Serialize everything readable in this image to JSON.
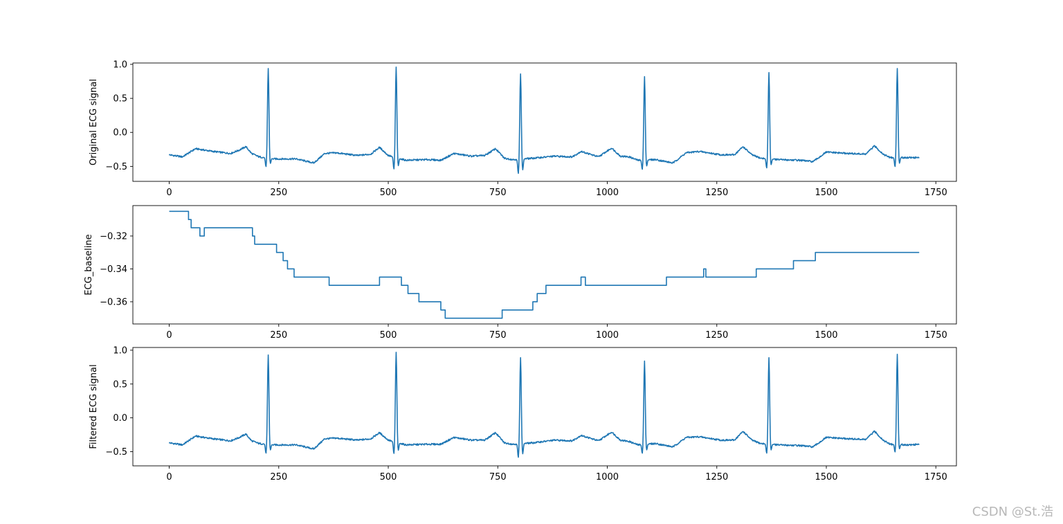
{
  "watermark": "CSDN @St.浩",
  "colors": {
    "line": "#1f77b4",
    "axes": "#000000",
    "background": "#ffffff"
  },
  "chart_data": [
    {
      "type": "line",
      "ylabel": "Original ECG signal",
      "xlim": [
        -83,
        1797
      ],
      "ylim": [
        -0.72,
        1.02
      ],
      "xticks": [
        0,
        250,
        500,
        750,
        1000,
        1250,
        1500,
        1750
      ],
      "yticks": [
        -0.5,
        0.0,
        0.5,
        1.0
      ],
      "ytick_labels": [
        "−0.5",
        "0.0",
        "0.5",
        "1.0"
      ],
      "grid": false,
      "peaks": [
        {
          "x": 226,
          "r": 0.94,
          "q": -0.53
        },
        {
          "x": 518,
          "r": 0.96,
          "q": -0.57
        },
        {
          "x": 802,
          "r": 0.86,
          "q": -0.64
        },
        {
          "x": 1085,
          "r": 0.82,
          "q": -0.57
        },
        {
          "x": 1369,
          "r": 0.88,
          "q": -0.55
        },
        {
          "x": 1662,
          "r": 0.94,
          "q": -0.53
        }
      ],
      "series": [
        {
          "x": [
            0,
            30,
            60,
            100,
            140,
            160,
            175,
            188,
            205,
            240,
            290,
            330,
            355,
            380,
            430,
            460,
            480,
            500,
            540,
            590,
            620,
            650,
            690,
            720,
            745,
            765,
            785,
            830,
            880,
            920,
            940,
            980,
            1010,
            1030,
            1050,
            1070,
            1110,
            1150,
            1180,
            1210,
            1260,
            1290,
            1310,
            1330,
            1350,
            1390,
            1440,
            1470,
            1500,
            1550,
            1590,
            1610,
            1630,
            1645,
            1690,
            1712
          ],
          "y": [
            -0.33,
            -0.36,
            -0.24,
            -0.28,
            -0.31,
            -0.26,
            -0.21,
            -0.31,
            -0.36,
            -0.39,
            -0.39,
            -0.45,
            -0.31,
            -0.3,
            -0.34,
            -0.32,
            -0.22,
            -0.34,
            -0.41,
            -0.4,
            -0.41,
            -0.31,
            -0.35,
            -0.34,
            -0.24,
            -0.38,
            -0.4,
            -0.38,
            -0.35,
            -0.36,
            -0.28,
            -0.36,
            -0.23,
            -0.35,
            -0.36,
            -0.41,
            -0.4,
            -0.45,
            -0.3,
            -0.28,
            -0.33,
            -0.33,
            -0.21,
            -0.33,
            -0.38,
            -0.4,
            -0.41,
            -0.43,
            -0.29,
            -0.31,
            -0.32,
            -0.2,
            -0.32,
            -0.37,
            -0.37,
            -0.37
          ]
        }
      ]
    },
    {
      "type": "line",
      "ylabel": "ECG_baseline",
      "xlim": [
        -83,
        1797
      ],
      "ylim": [
        -0.3735,
        -0.3015
      ],
      "xticks": [
        0,
        250,
        500,
        750,
        1000,
        1250,
        1500,
        1750
      ],
      "yticks": [
        -0.36,
        -0.34,
        -0.32
      ],
      "ytick_labels": [
        "−0.36",
        "−0.34",
        "−0.32"
      ],
      "grid": false,
      "step": true,
      "series": [
        {
          "x": [
            0,
            44,
            50,
            55,
            70,
            80,
            190,
            195,
            245,
            260,
            270,
            285,
            365,
            480,
            530,
            545,
            570,
            620,
            630,
            760,
            830,
            840,
            860,
            940,
            950,
            1135,
            1220,
            1225,
            1235,
            1340,
            1425,
            1475,
            1712
          ],
          "y": [
            -0.305,
            -0.31,
            -0.315,
            -0.315,
            -0.32,
            -0.315,
            -0.32,
            -0.325,
            -0.33,
            -0.335,
            -0.34,
            -0.345,
            -0.35,
            -0.345,
            -0.35,
            -0.355,
            -0.36,
            -0.365,
            -0.37,
            -0.365,
            -0.36,
            -0.355,
            -0.35,
            -0.345,
            -0.35,
            -0.345,
            -0.34,
            -0.345,
            -0.345,
            -0.34,
            -0.335,
            -0.33,
            -0.33
          ]
        }
      ]
    },
    {
      "type": "line",
      "ylabel": "Filtered ECG signal",
      "xlim": [
        -83,
        1797
      ],
      "ylim": [
        -0.71,
        1.04
      ],
      "xticks": [
        0,
        250,
        500,
        750,
        1000,
        1250,
        1500,
        1750
      ],
      "yticks": [
        -0.5,
        0.0,
        0.5,
        1.0
      ],
      "ytick_labels": [
        "−0.5",
        "0.0",
        "0.5",
        "1.0"
      ],
      "grid": false,
      "peaks": [
        {
          "x": 226,
          "r": 0.93,
          "q": -0.55
        },
        {
          "x": 518,
          "r": 0.97,
          "q": -0.56
        },
        {
          "x": 802,
          "r": 0.89,
          "q": -0.62
        },
        {
          "x": 1085,
          "r": 0.84,
          "q": -0.55
        },
        {
          "x": 1369,
          "r": 0.89,
          "q": -0.55
        },
        {
          "x": 1662,
          "r": 0.94,
          "q": -0.53
        }
      ],
      "series": [
        {
          "x": [
            0,
            30,
            60,
            100,
            140,
            160,
            175,
            188,
            205,
            240,
            290,
            330,
            355,
            380,
            430,
            460,
            480,
            500,
            540,
            590,
            620,
            650,
            690,
            720,
            745,
            765,
            785,
            830,
            880,
            920,
            940,
            980,
            1010,
            1030,
            1050,
            1070,
            1110,
            1150,
            1180,
            1210,
            1260,
            1290,
            1310,
            1330,
            1350,
            1390,
            1440,
            1470,
            1500,
            1550,
            1590,
            1610,
            1630,
            1645,
            1690,
            1712
          ],
          "y": [
            -0.37,
            -0.4,
            -0.27,
            -0.31,
            -0.34,
            -0.29,
            -0.24,
            -0.34,
            -0.38,
            -0.4,
            -0.4,
            -0.46,
            -0.31,
            -0.3,
            -0.33,
            -0.31,
            -0.22,
            -0.33,
            -0.4,
            -0.39,
            -0.39,
            -0.29,
            -0.33,
            -0.33,
            -0.22,
            -0.37,
            -0.39,
            -0.37,
            -0.33,
            -0.34,
            -0.26,
            -0.34,
            -0.21,
            -0.33,
            -0.35,
            -0.4,
            -0.38,
            -0.43,
            -0.29,
            -0.28,
            -0.33,
            -0.33,
            -0.2,
            -0.33,
            -0.38,
            -0.4,
            -0.41,
            -0.43,
            -0.29,
            -0.31,
            -0.32,
            -0.2,
            -0.33,
            -0.39,
            -0.4,
            -0.39
          ]
        }
      ]
    }
  ]
}
